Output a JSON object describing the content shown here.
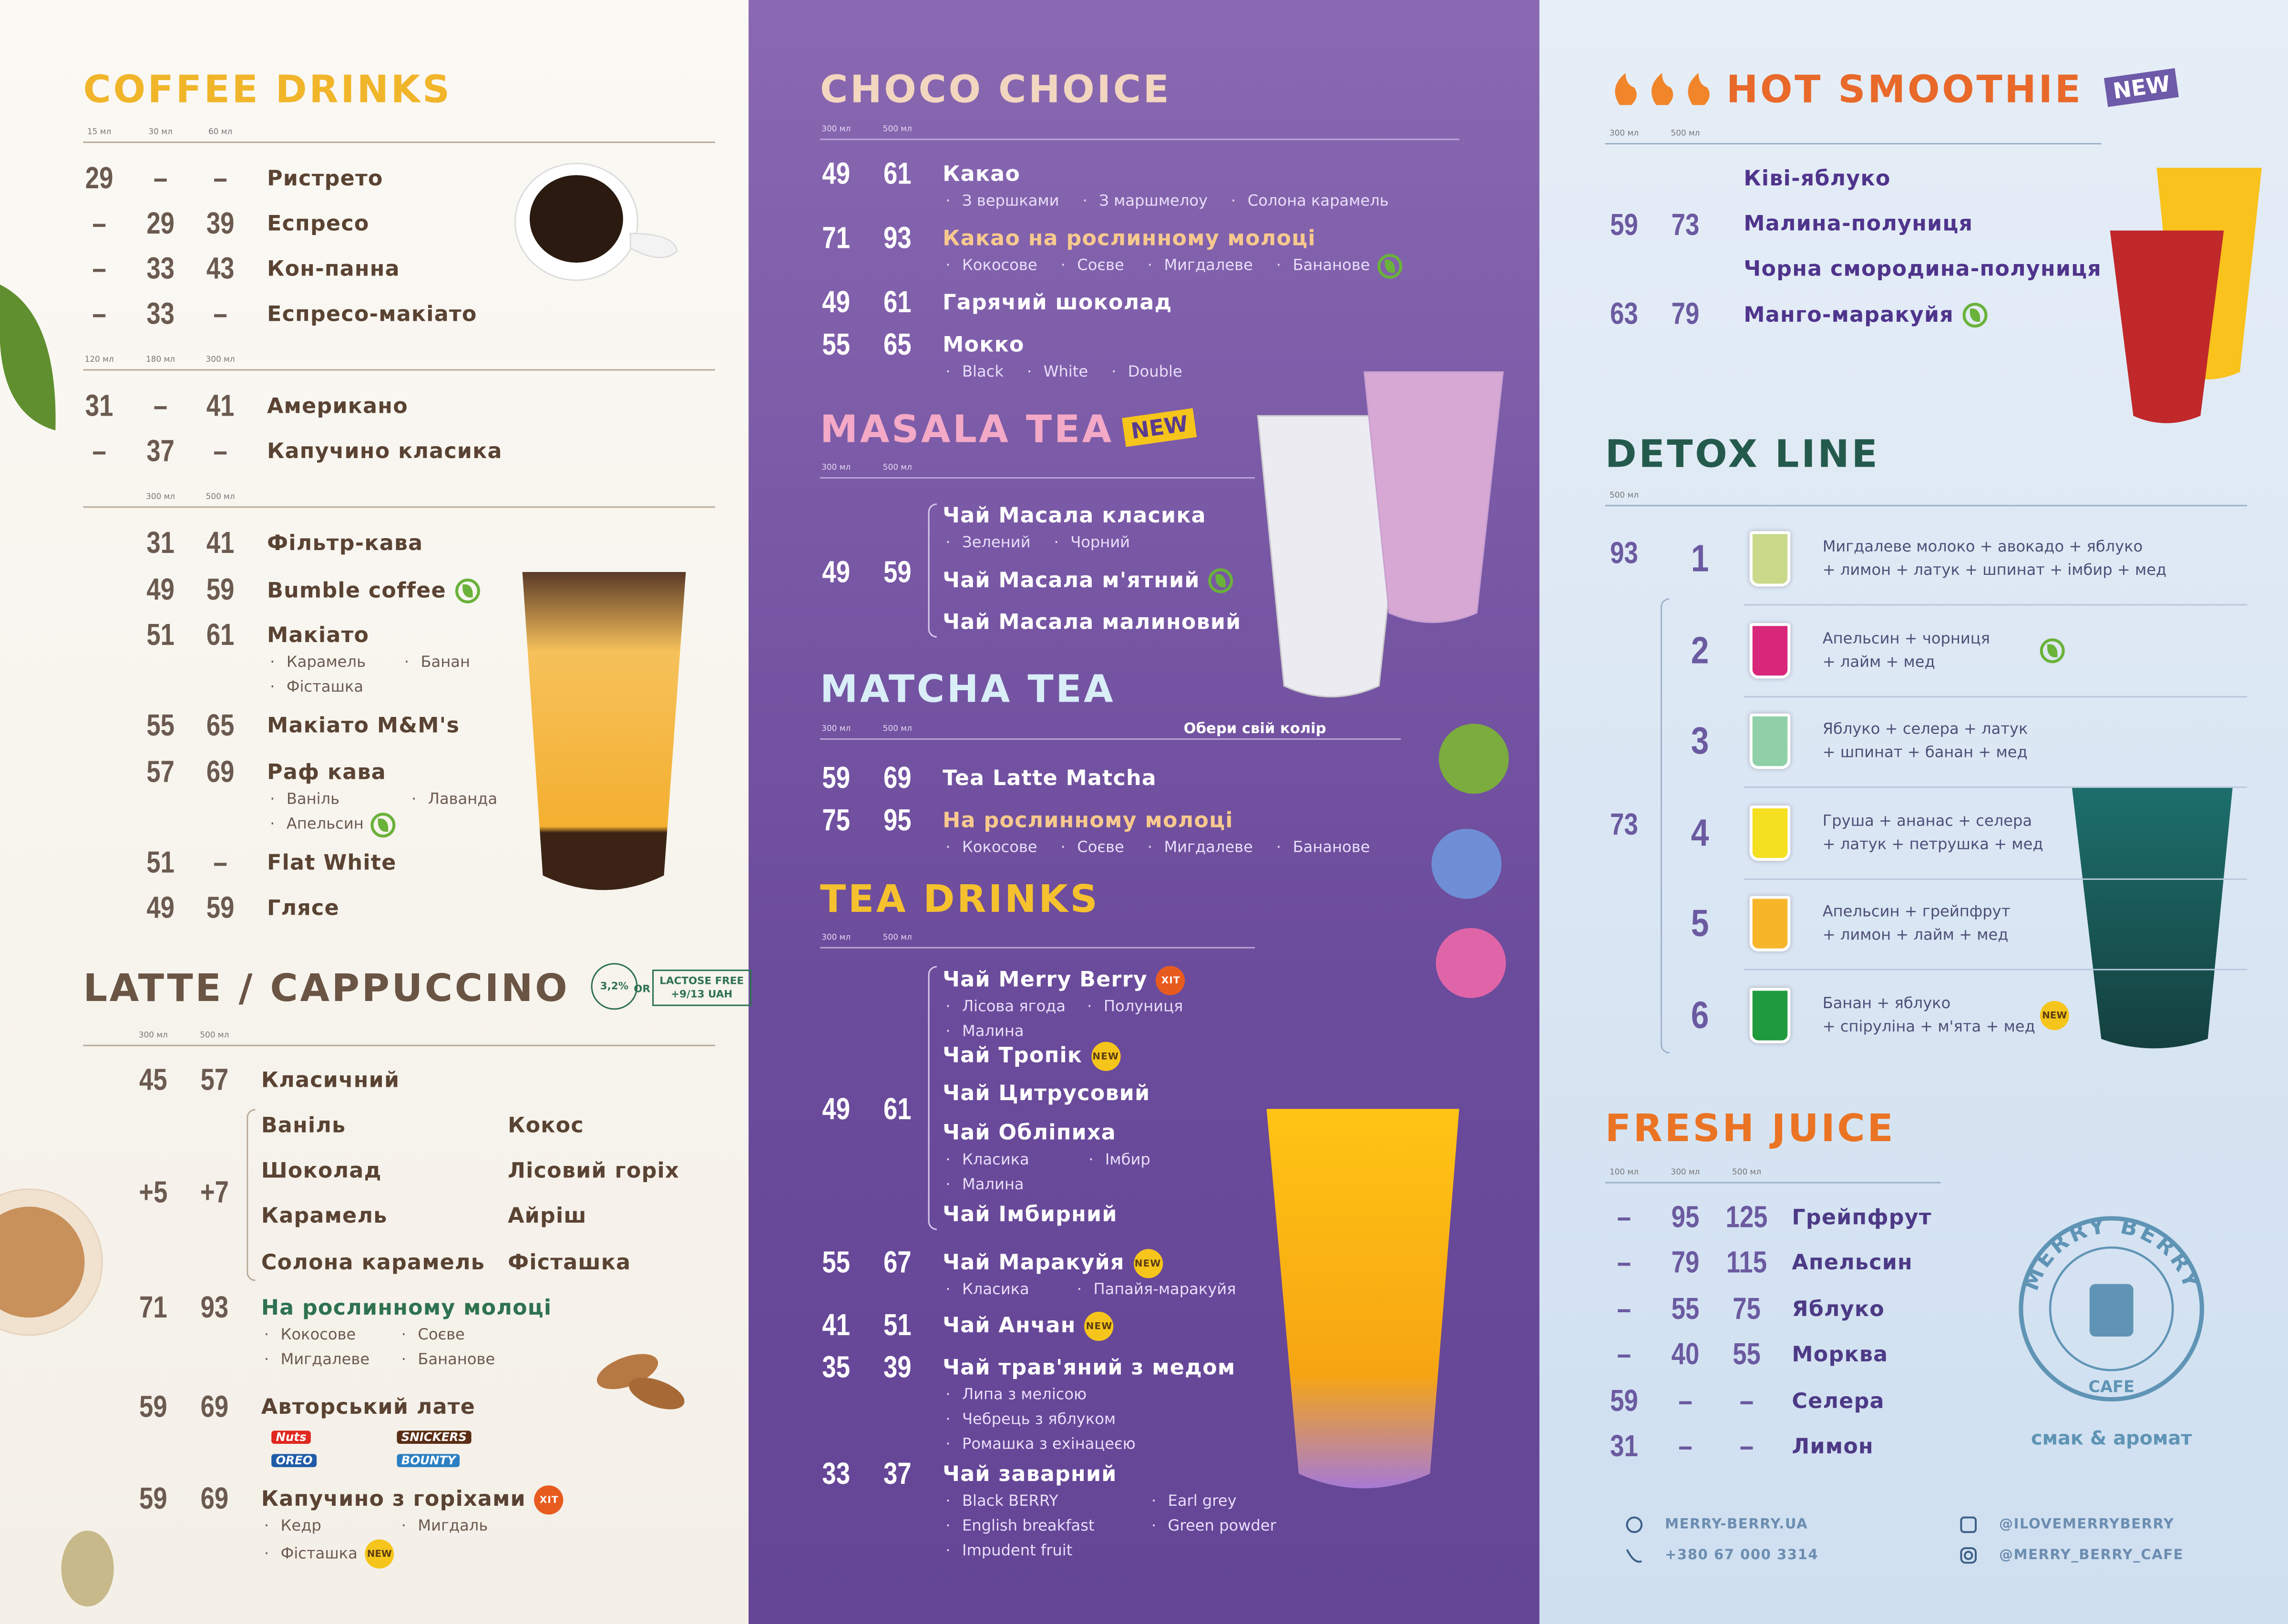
{
  "coffee": {
    "title": "COFFEE DRINKS",
    "blocks": [
      {
        "sizes": [
          "15 мл",
          "30 мл",
          "60 мл"
        ],
        "groups": [
          {
            "prices": [
              29,
              "–",
              "–"
            ],
            "items": [
              {
                "name": "Ристрето"
              }
            ]
          },
          {
            "prices": [
              "–",
              29,
              39
            ],
            "items": [
              {
                "name": "Еспресо"
              }
            ]
          },
          {
            "prices": [
              "–",
              33,
              43
            ],
            "items": [
              {
                "name": "Кон-панна"
              }
            ]
          },
          {
            "prices": [
              "–",
              33,
              "–"
            ],
            "items": [
              {
                "name": "Еспресо-макіато"
              }
            ]
          }
        ]
      },
      {
        "sizes": [
          "120 мл",
          "180 мл",
          "300 мл"
        ],
        "groups": [
          {
            "prices": [
              31,
              "–",
              41
            ],
            "items": [
              {
                "name": "Американо"
              }
            ]
          },
          {
            "prices": [
              "–",
              37,
              "–"
            ],
            "items": [
              {
                "name": "Капучино класика"
              }
            ]
          }
        ]
      },
      {
        "sizes": [
          "300 мл",
          "500 мл"
        ],
        "groups": [
          {
            "prices": [
              31,
              41
            ],
            "items": [
              {
                "name": "Фільтр-кава"
              }
            ]
          },
          {
            "prices": [
              49,
              59
            ],
            "items": [
              {
                "name": "Bumble coffee",
                "plant_based": true
              }
            ]
          },
          {
            "prices": [
              51,
              61
            ],
            "items": [
              {
                "name": "Макіато",
                "options": [
                  "Карамель",
                  "Банан",
                  "Фісташка"
                ]
              }
            ]
          },
          {
            "prices": [
              55,
              65
            ],
            "items": [
              {
                "name": "Макіато M&M's"
              }
            ]
          },
          {
            "prices": [
              57,
              69
            ],
            "items": [
              {
                "name": "Раф кава",
                "options": [
                  "Ваніль",
                  "Лаванда",
                  {
                    "name": "Апельсин",
                    "plant_based": true
                  }
                ]
              }
            ]
          },
          {
            "prices": [
              51,
              "–"
            ],
            "items": [
              {
                "name": "Flat White"
              }
            ]
          },
          {
            "prices": [
              49,
              59
            ],
            "items": [
              {
                "name": "Глясе"
              }
            ]
          }
        ]
      }
    ]
  },
  "latte": {
    "title": "LATTE / CAPPUCCINO",
    "milk_note": {
      "fat": "3,2%",
      "or": "OR",
      "lactose": "LACTOSE FREE",
      "price": "+9/13 UAH"
    },
    "sizes": [
      "300 мл",
      "500 мл"
    ],
    "groups": [
      {
        "prices": [
          45,
          57
        ],
        "items": [
          {
            "name": "Класичний"
          }
        ]
      },
      {
        "prices": [
          "+5",
          "+7"
        ],
        "items": [
          {
            "name": "Ваніль"
          },
          {
            "name": "Кокос"
          },
          {
            "name": "Шоколад"
          },
          {
            "name": "Лісовий горіх"
          },
          {
            "name": "Карамель"
          },
          {
            "name": "Айріш"
          },
          {
            "name": "Солона карамель"
          },
          {
            "name": "Фісташка"
          }
        ]
      },
      {
        "prices": [
          71,
          93
        ],
        "items": [
          {
            "name": "На рослинному молоці",
            "options": [
              "Кокосове",
              "Соєве",
              "Мигдалеве",
              "Бананове"
            ]
          }
        ]
      },
      {
        "prices": [
          59,
          69
        ],
        "items": [
          {
            "name": "Авторський лате",
            "brands": [
              "Nuts",
              "OREO",
              "SNICKERS",
              "BOUNTY"
            ]
          }
        ]
      },
      {
        "prices": [
          59,
          69
        ],
        "items": [
          {
            "name": "Капучино з горіхами",
            "badge": "ХІТ",
            "options": [
              "Кедр",
              "Мигдаль",
              {
                "name": "Фісташка",
                "badge": "NEW"
              }
            ]
          }
        ]
      }
    ]
  },
  "choco": {
    "title": "CHOCO CHOICE",
    "sizes": [
      "300 мл",
      "500 мл"
    ],
    "groups": [
      {
        "prices": [
          49,
          61
        ],
        "items": [
          {
            "name": "Какао",
            "options": [
              "З вершками",
              "З маршмелоу",
              "Солона карамель"
            ]
          }
        ]
      },
      {
        "prices": [
          71,
          93
        ],
        "items": [
          {
            "name": "Какао на рослинному молоці",
            "options": [
              "Кокосове",
              "Соєве",
              "Мигдалеве",
              {
                "name": "Бананове",
                "plant_based": true
              }
            ]
          }
        ]
      },
      {
        "prices": [
          49,
          61
        ],
        "items": [
          {
            "name": "Гарячий шоколад"
          }
        ]
      },
      {
        "prices": [
          55,
          65
        ],
        "items": [
          {
            "name": "Мокко",
            "options": [
              "Black",
              "White",
              "Double"
            ]
          }
        ]
      }
    ]
  },
  "masala": {
    "title": "MASALA TEA",
    "badge": "NEW",
    "sizes": [
      "300 мл",
      "500 мл"
    ],
    "groups": [
      {
        "prices": [
          49,
          59
        ],
        "items": [
          {
            "name": "Чай Масала класика",
            "options": [
              "Зелений",
              "Чорний"
            ]
          },
          {
            "name": "Чай Масала м'ятний",
            "plant_based": true
          },
          {
            "name": "Чай Масала малиновий"
          }
        ]
      }
    ]
  },
  "matcha": {
    "title": "MATCHA TEA",
    "note": "Обери свій колір",
    "sizes": [
      "300 мл",
      "500 мл"
    ],
    "groups": [
      {
        "prices": [
          59,
          69
        ],
        "items": [
          {
            "name": "Tea Latte Matcha"
          }
        ]
      },
      {
        "prices": [
          75,
          95
        ],
        "items": [
          {
            "name": "На рослинному молоці",
            "options": [
              "Кокосове",
              "Соєве",
              "Мигдалеве",
              "Бананове"
            ]
          }
        ]
      }
    ]
  },
  "tea": {
    "title": "TEA DRINKS",
    "sizes": [
      "300 мл",
      "500 мл"
    ],
    "groups": [
      {
        "prices": [
          49,
          61
        ],
        "items": [
          {
            "name": "Чай Merry Berry",
            "badge": "ХІТ",
            "options": [
              "Лісова ягода",
              "Полуниця",
              "Малина"
            ]
          },
          {
            "name": "Чай Тропік",
            "badge": "NEW"
          },
          {
            "name": "Чай Цитрусовий"
          },
          {
            "name": "Чай Обліпиха",
            "options": [
              "Класика",
              "Імбир",
              "Малина"
            ]
          },
          {
            "name": "Чай Імбирний"
          }
        ]
      },
      {
        "prices": [
          55,
          67
        ],
        "items": [
          {
            "name": "Чай Маракуйя",
            "badge": "NEW",
            "options": [
              "Класика",
              "Папайя-маракуйя"
            ]
          }
        ]
      },
      {
        "prices": [
          41,
          51
        ],
        "items": [
          {
            "name": "Чай Анчан",
            "badge": "NEW"
          }
        ]
      },
      {
        "prices": [
          35,
          39
        ],
        "items": [
          {
            "name": "Чай трав'яний з медом",
            "options": [
              "Липа з мелісою",
              "Чебрець з яблуком",
              "Ромашка з ехінацеєю"
            ]
          }
        ]
      },
      {
        "prices": [
          33,
          37
        ],
        "items": [
          {
            "name": "Чай заварний",
            "options": [
              "Black BERRY",
              "Earl grey",
              "English breakfast",
              "Green powder",
              "Impudent fruit"
            ]
          }
        ]
      }
    ]
  },
  "hot_smoothie": {
    "title": "HOT SMOOTHIE",
    "badge": "NEW",
    "sizes": [
      "300 мл",
      "500 мл"
    ],
    "groups": [
      {
        "prices": [
          59,
          73
        ],
        "items": [
          {
            "name": "Ківі-яблуко"
          },
          {
            "name": "Малина-полуниця"
          },
          {
            "name": "Чорна смородина-полуниця"
          }
        ]
      },
      {
        "prices": [
          63,
          79
        ],
        "items": [
          {
            "name": "Манго-маракуйя",
            "plant_based": true
          }
        ]
      }
    ]
  },
  "detox": {
    "title": "DETOX LINE",
    "sizes": [
      "500 мл"
    ],
    "groups": [
      {
        "prices": [
          93
        ],
        "items": [
          {
            "number": 1,
            "lines": [
              "Мигдалеве молоко + авокадо + яблуко",
              "+ лимон + латук + шпинат + імбир + мед"
            ]
          }
        ]
      },
      {
        "prices": [
          73
        ],
        "items": [
          {
            "number": 2,
            "lines": [
              "Апельсин + чорниця",
              "+ лайм + мед"
            ],
            "plant_based": true
          },
          {
            "number": 3,
            "lines": [
              "Яблуко + селера + латук",
              "+ шпинат + банан + мед"
            ]
          },
          {
            "number": 4,
            "lines": [
              "Груша + ананас + селера",
              "+ латук + петрушка + мед"
            ]
          },
          {
            "number": 5,
            "lines": [
              "Апельсин + грейпфрут",
              "+ лимон + лайм + мед"
            ]
          },
          {
            "number": 6,
            "lines": [
              "Банан + яблуко",
              "+ спіруліна + м'ята + мед"
            ],
            "badge": "NEW"
          }
        ]
      }
    ]
  },
  "fresh_juice": {
    "title": "FRESH JUICE",
    "sizes": [
      "100 мл",
      "300 мл",
      "500 мл"
    ],
    "groups": [
      {
        "prices": [
          "–",
          95,
          125
        ],
        "items": [
          {
            "name": "Грейпфрут"
          }
        ]
      },
      {
        "prices": [
          "–",
          79,
          115
        ],
        "items": [
          {
            "name": "Апельсин"
          }
        ]
      },
      {
        "prices": [
          "–",
          55,
          75
        ],
        "items": [
          {
            "name": "Яблуко"
          }
        ]
      },
      {
        "prices": [
          "–",
          40,
          55
        ],
        "items": [
          {
            "name": "Морква"
          }
        ]
      },
      {
        "prices": [
          59,
          "–",
          "–"
        ],
        "items": [
          {
            "name": "Селера"
          }
        ]
      },
      {
        "prices": [
          31,
          "–",
          "–"
        ],
        "items": [
          {
            "name": "Лимон"
          }
        ]
      }
    ]
  },
  "logo": {
    "name": "MERRY BERRY",
    "sub": "CAFE",
    "tagline": "смак & аромат"
  },
  "contacts": {
    "site": "MERRY-BERRY.UA",
    "phone": "+380 67 000 3314",
    "facebook": "@ILOVEMERRYBERRY",
    "instagram": "@MERRY_BERRY_CAFE"
  }
}
